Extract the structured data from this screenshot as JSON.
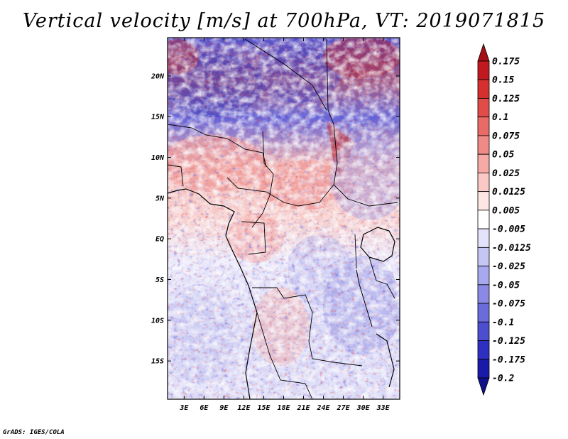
{
  "title": "Vertical velocity [m/s] at 700hPa, VT: 2019071815",
  "credit": "GrADS: IGES/COLA",
  "map": {
    "lat_labels": [
      "20N",
      "15N",
      "10N",
      "5N",
      "EQ",
      "5S",
      "10S",
      "15S"
    ],
    "lon_labels": [
      "3E",
      "6E",
      "9E",
      "12E",
      "15E",
      "18E",
      "21E",
      "24E",
      "27E",
      "30E",
      "33E"
    ],
    "lat_values": [
      20,
      15,
      10,
      5,
      0,
      -5,
      -10,
      -15
    ],
    "lon_values": [
      3,
      6,
      9,
      12,
      15,
      18,
      21,
      24,
      27,
      30,
      33
    ],
    "lon_range": [
      0.5,
      35.5
    ],
    "lat_range": [
      -19.7,
      24.7
    ]
  },
  "colorbar": {
    "labels": [
      "0.175",
      "0.15",
      "0.125",
      "0.1",
      "0.075",
      "0.05",
      "0.025",
      "0.0125",
      "0.005",
      "-0.005",
      "-0.0125",
      "-0.025",
      "-0.05",
      "-0.075",
      "-0.1",
      "-0.125",
      "-0.175",
      "-0.2"
    ],
    "colors": [
      "#a50f15",
      "#c01a20",
      "#d6302e",
      "#e24c48",
      "#ea6a66",
      "#f08a86",
      "#f5aaa6",
      "#fac8c5",
      "#fde6e4",
      "#ffffff",
      "#e3e3fb",
      "#c6c6f5",
      "#a8a8ee",
      "#8a8ae6",
      "#6b6bdc",
      "#4d4dd0",
      "#2f2fc2",
      "#1a1aa8",
      "#10108a"
    ]
  }
}
